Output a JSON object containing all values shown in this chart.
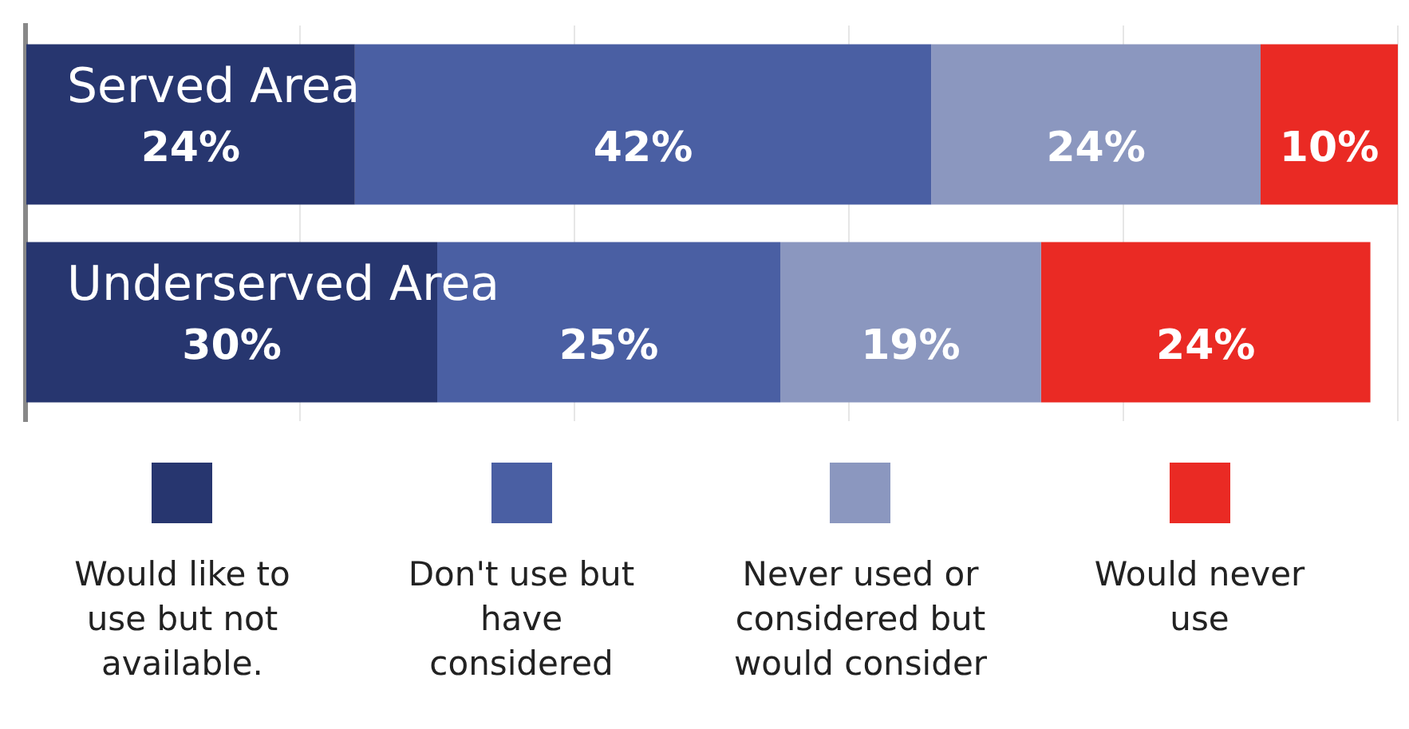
{
  "chart_data": {
    "type": "bar",
    "orientation": "horizontal",
    "stacked": true,
    "categories": [
      "Served Area",
      "Underserved Area"
    ],
    "series": [
      {
        "name": "Would like to use but not available.",
        "color": "#27366f",
        "values": [
          24,
          30
        ],
        "value_labels": [
          "24%",
          "30%"
        ]
      },
      {
        "name": "Don't use but have considered",
        "color": "#4a5fa3",
        "values": [
          42,
          25
        ],
        "value_labels": [
          "42%",
          "25%"
        ]
      },
      {
        "name": "Never used or considered but would consider",
        "color": "#8b97bf",
        "values": [
          24,
          19
        ],
        "value_labels": [
          "24%",
          "19%"
        ]
      },
      {
        "name": "Would never use",
        "color": "#ea2a24",
        "values": [
          10,
          24
        ],
        "value_labels": [
          "10%",
          "24%"
        ]
      }
    ],
    "xlim": [
      0,
      100
    ],
    "xticks": [
      {
        "value": 0,
        "label": null
      },
      {
        "value": 20,
        "label": null
      },
      {
        "value": 40,
        "label": null
      },
      {
        "value": 60,
        "label": null
      },
      {
        "value": 80,
        "label": null
      },
      {
        "value": 100,
        "label": null
      }
    ],
    "grid": "x",
    "tick_labels": "y",
    "legend": "bottom"
  }
}
